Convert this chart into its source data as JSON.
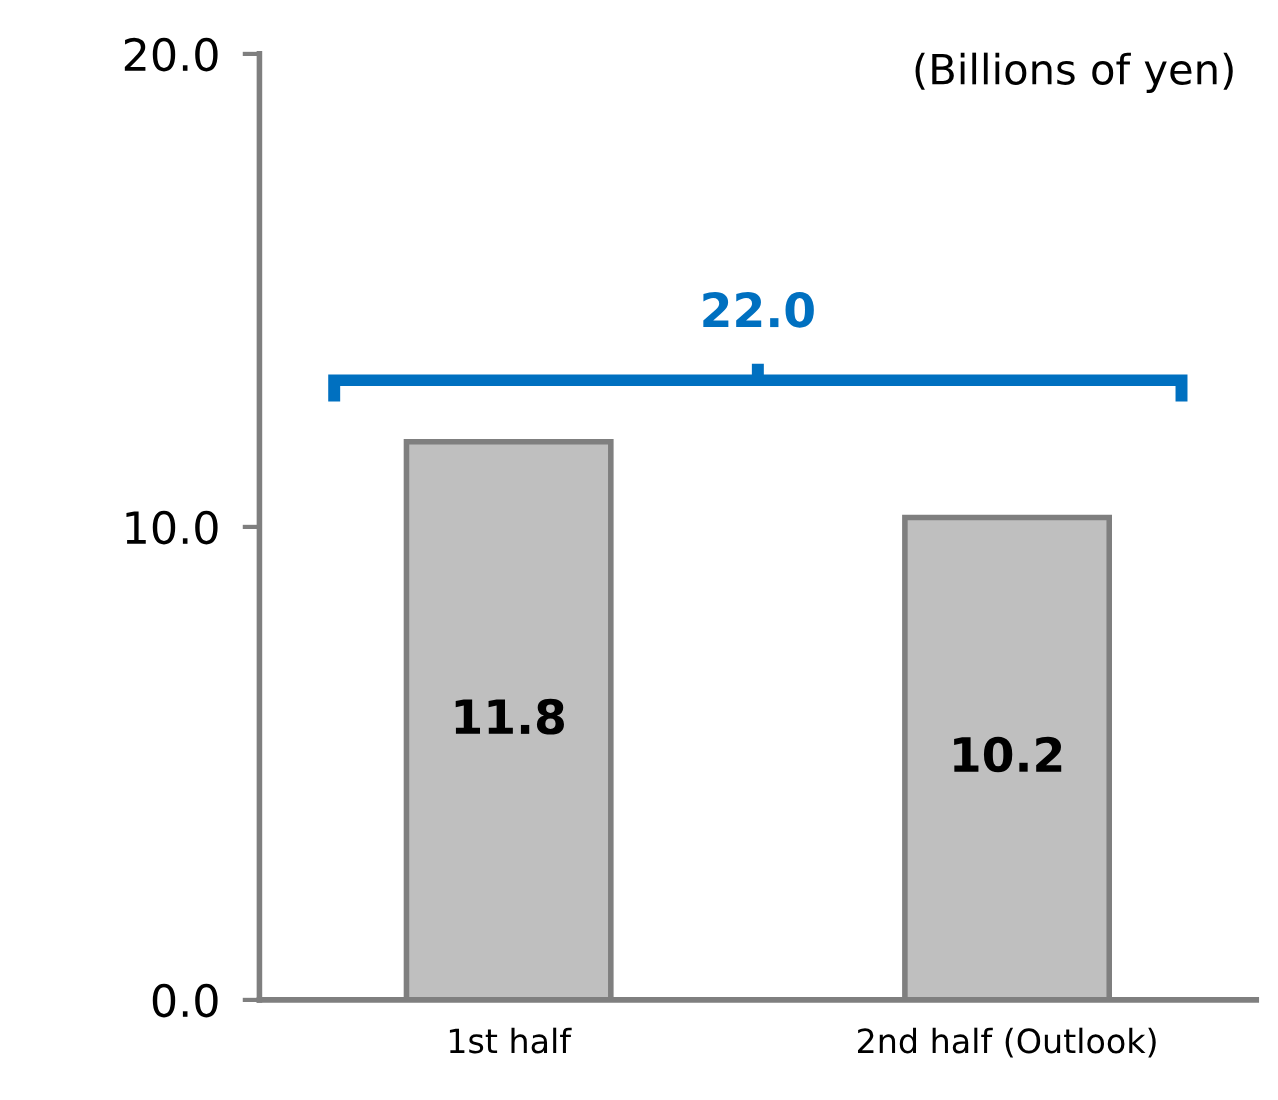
{
  "chart_data": {
    "type": "bar",
    "categories": [
      "1st half",
      "2nd half (Outlook)"
    ],
    "values": [
      11.8,
      10.2
    ],
    "color": "#bfbfbf",
    "data_labels": true,
    "ylim": [
      0,
      20
    ],
    "yticks": [
      {
        "value": 0,
        "label": "0.0"
      },
      {
        "value": 10,
        "label": "10.0"
      },
      {
        "value": 20,
        "label": "20.0"
      }
    ],
    "grid": false,
    "annotations": [
      "(Billions of yen)",
      "22.0"
    ]
  }
}
